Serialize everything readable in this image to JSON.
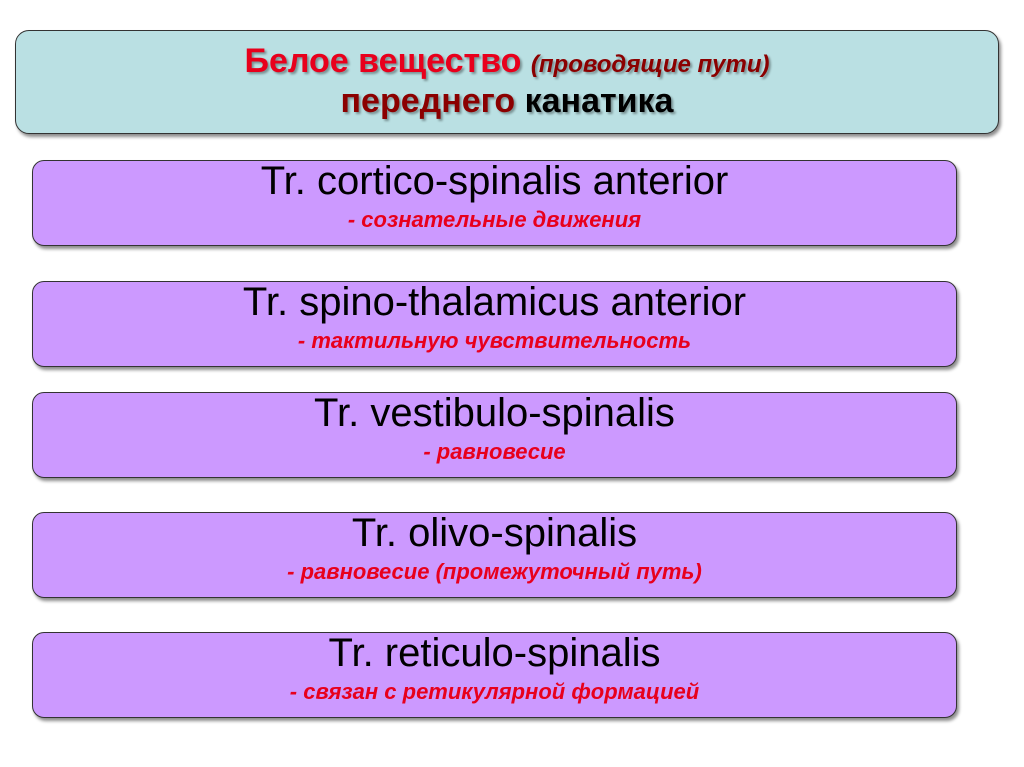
{
  "header": {
    "part1": "Белое вещество",
    "part2": "(проводящие пути)",
    "part3": "переднего",
    "part4": "канатика"
  },
  "tracts": [
    {
      "name": "Tr. cortico-spinalis anterior",
      "desc": "- сознательные движения"
    },
    {
      "name": "Tr. spino-thalamicus anterior",
      "desc": "- тактильную чувствительность"
    },
    {
      "name": "Tr. vestibulo-spinalis",
      "desc": "- равновесие"
    },
    {
      "name": "Tr. olivo-spinalis",
      "desc": "- равновесие (промежуточный путь)"
    },
    {
      "name": "Tr. reticulo-spinalis",
      "desc": "- связан с ретикулярной формацией"
    }
  ],
  "colors": {
    "header_bg": "#bae0e3",
    "box_bg": "#cc99ff",
    "accent_red": "#e8001c",
    "dark_red": "#8b0000"
  }
}
